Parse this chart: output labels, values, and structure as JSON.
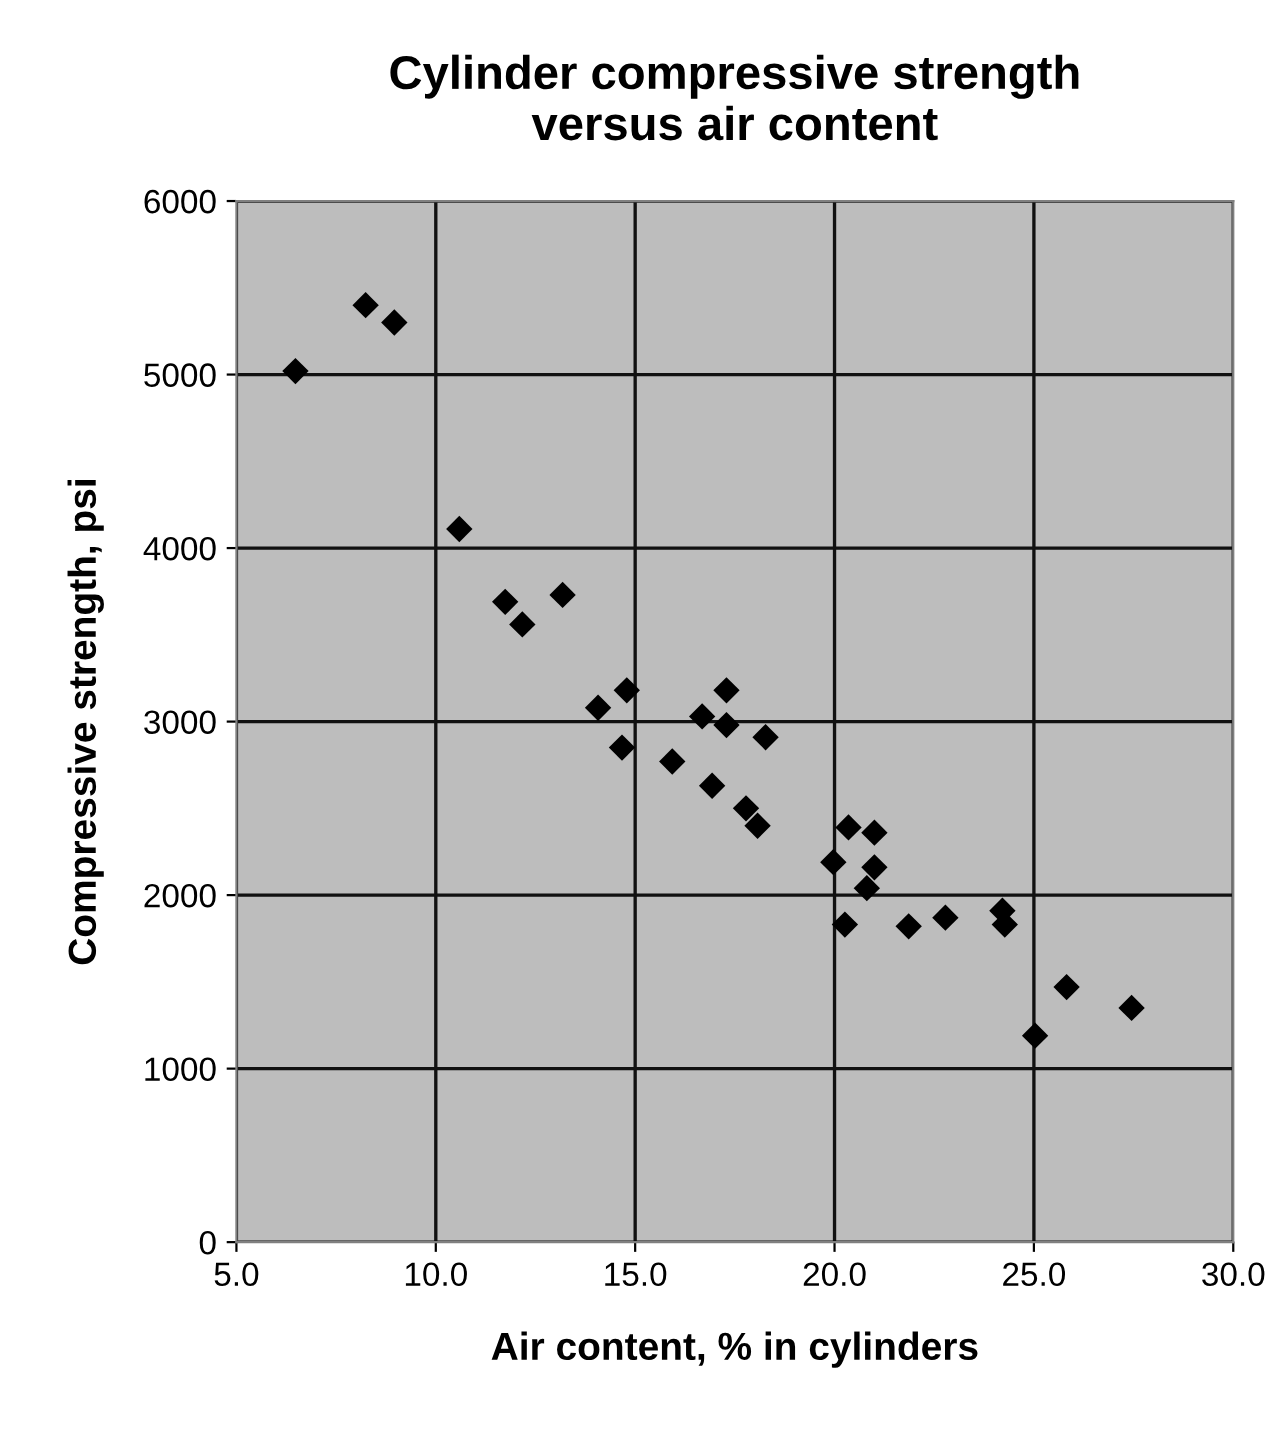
{
  "chart_data": {
    "type": "scatter",
    "title": "Cylinder compressive strength\nversus air content",
    "xlabel": "Air content, % in cylinders",
    "ylabel": "Compressive strength, psi",
    "x": [
      8.24,
      8.96,
      6.48,
      10.59,
      11.74,
      13.18,
      12.17,
      14.07,
      14.79,
      14.67,
      15.93,
      16.68,
      17.29,
      17.29,
      18.27,
      16.93,
      17.78,
      18.07,
      20.35,
      21.0,
      19.97,
      21.0,
      20.81,
      20.26,
      21.86,
      22.78,
      24.21,
      24.27,
      25.82,
      27.45,
      25.03
    ],
    "values": [
      5400,
      5300,
      5020,
      4110,
      3690,
      3730,
      3560,
      3080,
      3180,
      2850,
      2770,
      3030,
      3180,
      2980,
      2910,
      2630,
      2500,
      2400,
      2390,
      2360,
      2190,
      2160,
      2040,
      1830,
      1820,
      1870,
      1910,
      1830,
      1470,
      1350,
      1190
    ],
    "color": "#000000",
    "marker": "diamond",
    "xlim": [
      5.0,
      30.0
    ],
    "xticks": [
      {
        "value": 5,
        "label": "5.0"
      },
      {
        "value": 10,
        "label": "10.0"
      },
      {
        "value": 15,
        "label": "15.0"
      },
      {
        "value": 20,
        "label": "20.0"
      },
      {
        "value": 25,
        "label": "25.0"
      },
      {
        "value": 30,
        "label": "30.0"
      }
    ],
    "ylim": [
      0,
      6000
    ],
    "yticks": [
      0,
      1000,
      2000,
      3000,
      4000,
      5000,
      6000
    ],
    "grid": true
  }
}
